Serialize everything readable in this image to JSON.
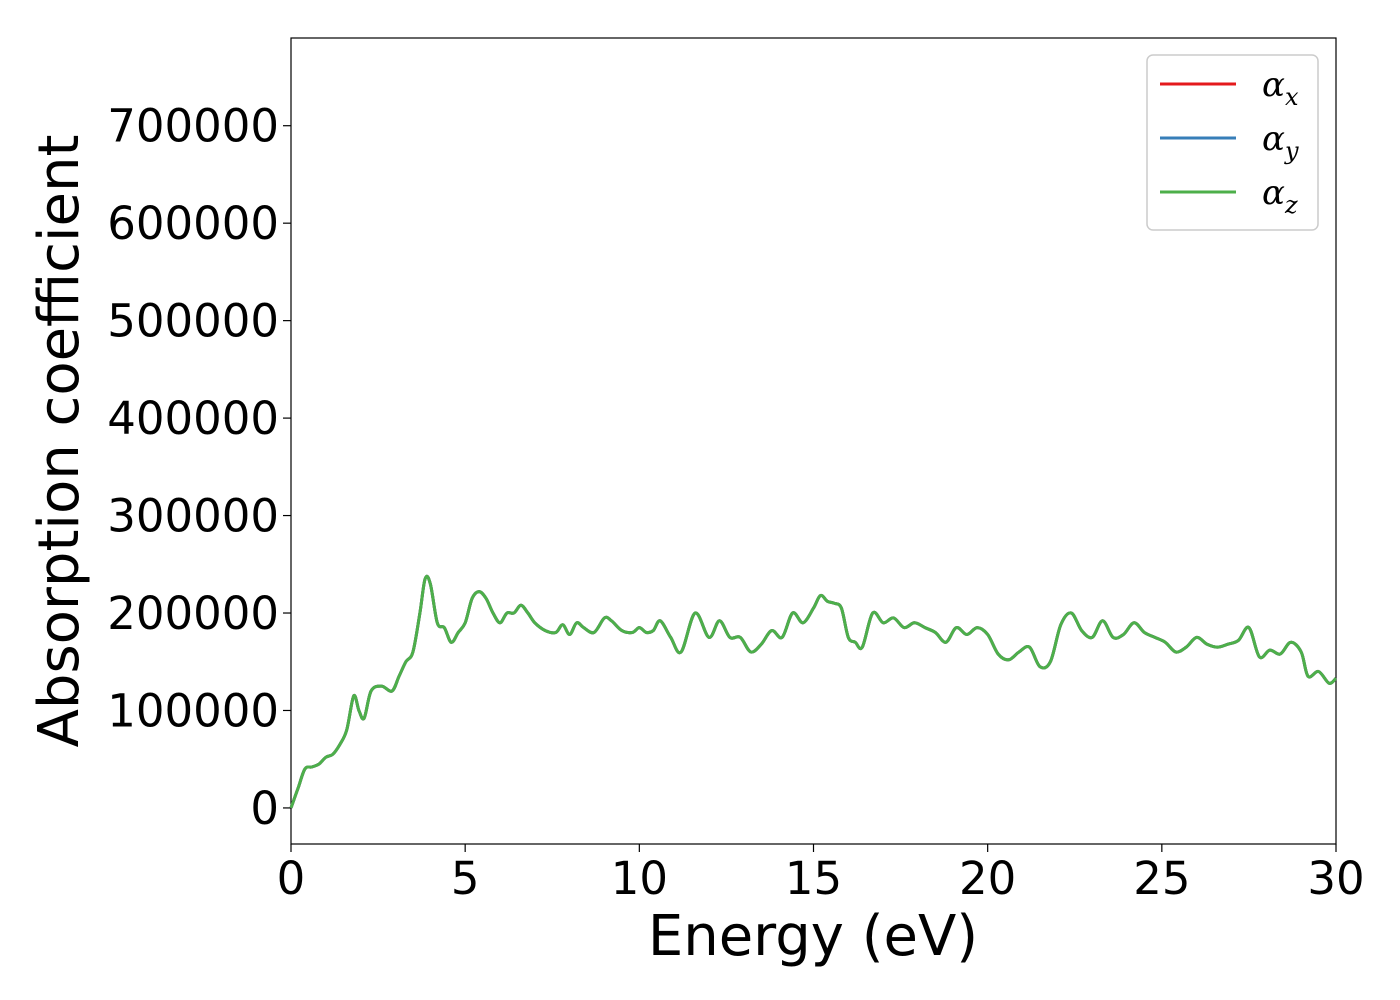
{
  "chart_data": {
    "type": "line",
    "title": "",
    "xlabel": "Energy (eV)",
    "ylabel": "Absorption coefficient",
    "xlim": [
      0,
      30
    ],
    "ylim": [
      -37000,
      790000
    ],
    "xticks": [
      0,
      5,
      10,
      15,
      20,
      25,
      30
    ],
    "yticks": [
      0,
      100000,
      200000,
      300000,
      400000,
      500000,
      600000,
      700000
    ],
    "grid": false,
    "legend": "top-right",
    "series": [
      {
        "name": "αx",
        "base": "α",
        "sub": "x",
        "color": "#e41a1c"
      },
      {
        "name": "αy",
        "base": "α",
        "sub": "y",
        "color": "#377eb8"
      },
      {
        "name": "αz",
        "base": "α",
        "sub": "z",
        "color": "#4daf4a"
      }
    ],
    "x": [
      0,
      0.2,
      0.4,
      0.6,
      0.8,
      1.0,
      1.2,
      1.4,
      1.6,
      1.8,
      1.95,
      2.1,
      2.3,
      2.6,
      2.9,
      3.1,
      3.3,
      3.5,
      3.7,
      3.85,
      4.0,
      4.2,
      4.4,
      4.6,
      4.8,
      5.0,
      5.2,
      5.4,
      5.6,
      5.8,
      6.0,
      6.2,
      6.4,
      6.6,
      6.8,
      7.0,
      7.3,
      7.6,
      7.8,
      8.0,
      8.2,
      8.4,
      8.7,
      9.0,
      9.2,
      9.5,
      9.8,
      10.0,
      10.2,
      10.4,
      10.6,
      10.9,
      11.2,
      11.6,
      12.0,
      12.3,
      12.6,
      12.9,
      13.2,
      13.5,
      13.8,
      14.1,
      14.4,
      14.7,
      15.0,
      15.2,
      15.4,
      15.6,
      15.8,
      16.0,
      16.2,
      16.4,
      16.7,
      17.0,
      17.3,
      17.6,
      17.9,
      18.2,
      18.5,
      18.8,
      19.1,
      19.4,
      19.7,
      20.0,
      20.3,
      20.6,
      20.9,
      21.2,
      21.5,
      21.8,
      22.1,
      22.4,
      22.7,
      23.0,
      23.3,
      23.6,
      23.9,
      24.2,
      24.5,
      24.8,
      25.1,
      25.4,
      25.7,
      26.0,
      26.3,
      26.6,
      26.9,
      27.2,
      27.5,
      27.8,
      28.1,
      28.4,
      28.7,
      29.0,
      29.2,
      29.5,
      29.8,
      30.0
    ],
    "values": [
      0,
      20000,
      40000,
      42000,
      45000,
      52000,
      55000,
      65000,
      80000,
      115000,
      100000,
      92000,
      120000,
      125000,
      120000,
      135000,
      150000,
      160000,
      200000,
      235000,
      230000,
      190000,
      185000,
      170000,
      180000,
      190000,
      215000,
      222000,
      215000,
      200000,
      190000,
      200000,
      200000,
      208000,
      200000,
      190000,
      182000,
      180000,
      188000,
      178000,
      190000,
      185000,
      180000,
      195000,
      192000,
      182000,
      180000,
      185000,
      180000,
      182000,
      192000,
      175000,
      160000,
      200000,
      175000,
      192000,
      175000,
      175000,
      160000,
      168000,
      182000,
      175000,
      200000,
      190000,
      205000,
      218000,
      212000,
      210000,
      205000,
      175000,
      170000,
      165000,
      200000,
      190000,
      195000,
      185000,
      190000,
      185000,
      180000,
      170000,
      185000,
      178000,
      185000,
      178000,
      158000,
      152000,
      160000,
      165000,
      145000,
      150000,
      188000,
      200000,
      182000,
      175000,
      192000,
      175000,
      178000,
      190000,
      180000,
      175000,
      170000,
      160000,
      165000,
      175000,
      168000,
      165000,
      168000,
      172000,
      185000,
      155000,
      162000,
      158000,
      170000,
      160000,
      135000,
      140000,
      128000,
      133000
    ]
  }
}
